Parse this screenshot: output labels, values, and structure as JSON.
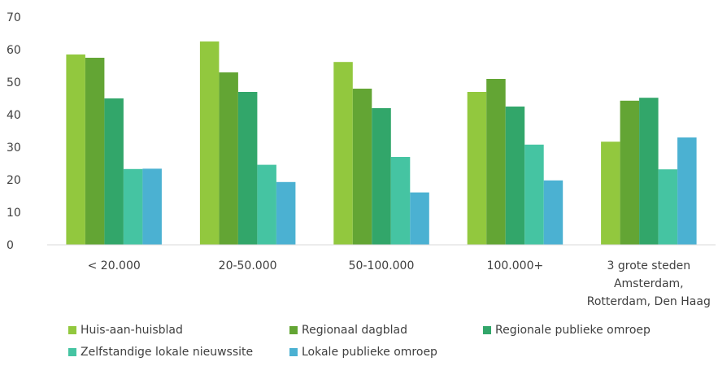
{
  "chart_data": {
    "type": "bar",
    "categories": [
      [
        "< 20.000"
      ],
      [
        "20-50.000"
      ],
      [
        "50-100.000"
      ],
      [
        "100.000+"
      ],
      [
        "3 grote steden",
        "Amsterdam,",
        "Rotterdam, Den Haag"
      ]
    ],
    "series": [
      {
        "name": "Huis-aan-huisblad",
        "color": "#92C83E",
        "values": [
          58.5,
          62.5,
          56.2,
          47.0,
          31.7
        ]
      },
      {
        "name": "Regionaal dagblad",
        "color": "#63A534",
        "values": [
          57.5,
          53.0,
          48.0,
          51.0,
          44.3
        ]
      },
      {
        "name": "Regionale publieke omroep",
        "color": "#32A66A",
        "values": [
          45.0,
          47.0,
          42.0,
          42.5,
          45.2
        ]
      },
      {
        "name": "Zelfstandige lokale nieuwssite",
        "color": "#45C4A2",
        "values": [
          23.3,
          24.6,
          27.0,
          30.8,
          23.2
        ]
      },
      {
        "name": "Lokale publieke omroep",
        "color": "#4BB1D2",
        "values": [
          23.4,
          19.3,
          16.1,
          19.8,
          33.0
        ]
      }
    ],
    "title": "",
    "xlabel": "",
    "ylabel": "",
    "ylim": [
      0,
      70
    ],
    "yticks": [
      "0",
      "10",
      "20",
      "30",
      "40",
      "50",
      "60",
      "70"
    ],
    "grid": false,
    "legend_position": "bottom"
  }
}
